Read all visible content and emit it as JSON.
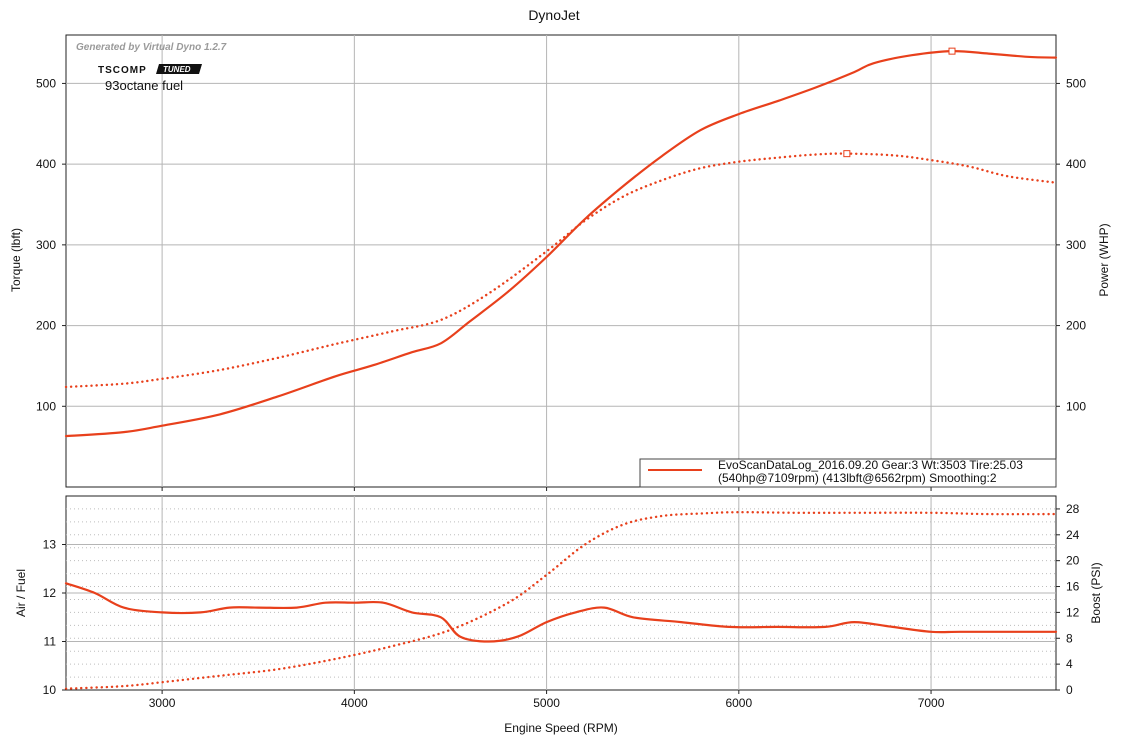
{
  "chart_data": [
    {
      "type": "line",
      "title": "DynoJet",
      "watermark": "Generated by Virtual Dyno 1.2.7",
      "logo": {
        "brand": "TSCOMP",
        "badge": "TUNED"
      },
      "annotation": "93octane fuel",
      "xlim": [
        2500,
        7650
      ],
      "x_ticks": [
        3000,
        4000,
        5000,
        6000,
        7000
      ],
      "ylabel_left": "Torque (lbft)",
      "ylabel_right": "Power (WHP)",
      "ylim": [
        0,
        560
      ],
      "y_ticks_left": [
        100,
        200,
        300,
        400,
        500
      ],
      "y_ticks_right": [
        100,
        200,
        300,
        400,
        500
      ],
      "grid": true,
      "legend_position": "bottom-right",
      "legend": {
        "line1": "EvoScanDataLog_2016.09.20 Gear:3 Wt:3503 Tire:25.03",
        "line2": "(540hp@7109rpm) (413lbft@6562rpm) Smoothing:2"
      },
      "series": [
        {
          "style": "solid",
          "x": [
            2500,
            2800,
            3000,
            3300,
            3600,
            3900,
            4100,
            4300,
            4450,
            4600,
            4800,
            5000,
            5200,
            5400,
            5600,
            5800,
            6000,
            6200,
            6400,
            6600,
            6700,
            6900,
            7109,
            7300,
            7500,
            7650
          ],
          "values": [
            63,
            68,
            76,
            90,
            112,
            137,
            151,
            167,
            178,
            205,
            242,
            285,
            332,
            373,
            410,
            442,
            462,
            478,
            495,
            514,
            525,
            535,
            540,
            537,
            533,
            532
          ],
          "peak_marker": {
            "x": 7109,
            "y": 540
          }
        },
        {
          "style": "dotted",
          "x": [
            2500,
            2800,
            3000,
            3300,
            3600,
            3900,
            4200,
            4450,
            4700,
            5000,
            5200,
            5400,
            5600,
            5800,
            6000,
            6200,
            6400,
            6562,
            6800,
            7000,
            7200,
            7400,
            7650
          ],
          "values": [
            124,
            128,
            134,
            145,
            160,
            177,
            193,
            207,
            240,
            292,
            330,
            360,
            380,
            395,
            403,
            408,
            412,
            413,
            411,
            405,
            397,
            385,
            377
          ],
          "peak_marker": {
            "x": 6562,
            "y": 413
          }
        }
      ]
    },
    {
      "type": "line",
      "xlabel": "Engine Speed (RPM)",
      "xlim": [
        2500,
        7650
      ],
      "x_ticks": [
        3000,
        4000,
        5000,
        6000,
        7000
      ],
      "ylabel_left": "Air / Fuel",
      "ylabel_right": "Boost (PSI)",
      "ylim_left": [
        10,
        14
      ],
      "y_ticks_left": [
        10,
        11,
        12,
        13
      ],
      "ylim_right": [
        0,
        30
      ],
      "y_ticks_right": [
        0,
        4,
        8,
        12,
        16,
        20,
        24,
        28
      ],
      "grid": true,
      "series": [
        {
          "style": "solid",
          "axis": "left",
          "x": [
            2500,
            2650,
            2800,
            3000,
            3200,
            3350,
            3500,
            3700,
            3850,
            4000,
            4150,
            4300,
            4450,
            4550,
            4700,
            4850,
            5000,
            5150,
            5300,
            5450,
            5700,
            5950,
            6200,
            6450,
            6600,
            6800,
            7000,
            7150,
            7400,
            7650
          ],
          "values": [
            12.2,
            12.0,
            11.7,
            11.6,
            11.6,
            11.7,
            11.7,
            11.7,
            11.8,
            11.8,
            11.8,
            11.6,
            11.5,
            11.1,
            11.0,
            11.1,
            11.4,
            11.6,
            11.7,
            11.5,
            11.4,
            11.3,
            11.3,
            11.3,
            11.4,
            11.3,
            11.2,
            11.2,
            11.2,
            11.2
          ]
        },
        {
          "style": "dotted",
          "axis": "right",
          "x": [
            2500,
            2800,
            3000,
            3300,
            3600,
            3900,
            4200,
            4500,
            4800,
            5000,
            5200,
            5400,
            5600,
            5800,
            6000,
            6300,
            6600,
            7000,
            7300,
            7650
          ],
          "values": [
            0.2,
            0.6,
            1.2,
            2.2,
            3.2,
            4.8,
            6.8,
            9.3,
            13.5,
            17.8,
            22.5,
            25.6,
            26.9,
            27.3,
            27.5,
            27.4,
            27.4,
            27.4,
            27.2,
            27.2
          ]
        }
      ]
    }
  ]
}
